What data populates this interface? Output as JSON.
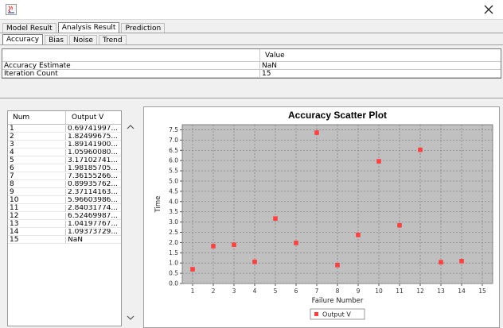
{
  "window": {
    "icon": "java-app-icon",
    "close_icon": "close-icon"
  },
  "main_tabs": [
    {
      "label": "Model Result",
      "active": false
    },
    {
      "label": "Analysis Result",
      "active": true
    },
    {
      "label": "Prediction",
      "active": false
    }
  ],
  "sub_tabs": [
    {
      "label": "Accuracy",
      "active": true
    },
    {
      "label": "Bias",
      "active": false
    },
    {
      "label": "Noise",
      "active": false
    },
    {
      "label": "Trend",
      "active": false
    }
  ],
  "summary_table": {
    "headers": [
      "",
      "Value"
    ],
    "rows": [
      [
        "Accuracy Estimate",
        "NaN"
      ],
      [
        "Iteration Count",
        "15"
      ]
    ]
  },
  "data_table": {
    "headers": [
      "Num",
      "Output V"
    ],
    "rows": [
      [
        "1",
        "0.69741997..."
      ],
      [
        "2",
        "1.82499675..."
      ],
      [
        "3",
        "1.89141900..."
      ],
      [
        "4",
        "1.05960080..."
      ],
      [
        "5",
        "3.17102741..."
      ],
      [
        "6",
        "1.98185705..."
      ],
      [
        "7",
        "7.36155266..."
      ],
      [
        "8",
        "0.89935762..."
      ],
      [
        "9",
        "2.37114163..."
      ],
      [
        "10",
        "5.96603986..."
      ],
      [
        "11",
        "2.84031774..."
      ],
      [
        "12",
        "6.52469987..."
      ],
      [
        "13",
        "1.04197767..."
      ],
      [
        "14",
        "1.09373729..."
      ],
      [
        "15",
        "NaN"
      ]
    ],
    "scroll_up_icon": "chevron-up-icon",
    "scroll_down_icon": "chevron-down-icon"
  },
  "chart_data": {
    "type": "scatter",
    "title": "Accuracy Scatter Plot",
    "xlabel": "Failure Number",
    "ylabel": "Time",
    "xlim": [
      0.5,
      15.5
    ],
    "ylim": [
      0,
      7.75
    ],
    "xticks": [
      "1",
      "2",
      "3",
      "4",
      "5",
      "6",
      "7",
      "8",
      "9",
      "10",
      "11",
      "12",
      "13",
      "14",
      "15"
    ],
    "yticks": [
      "0.0",
      "0.5",
      "1.0",
      "1.5",
      "2.0",
      "2.5",
      "3.0",
      "3.5",
      "4.0",
      "4.5",
      "5.0",
      "5.5",
      "6.0",
      "6.5",
      "7.0",
      "7.5"
    ],
    "grid": true,
    "legend_position": "bottom",
    "plot_background": "#c0c0c0",
    "series": [
      {
        "name": "Output V",
        "color": "#ff4040",
        "x": [
          1,
          2,
          3,
          4,
          5,
          6,
          7,
          8,
          9,
          10,
          11,
          12,
          13,
          14
        ],
        "y": [
          0.697,
          1.825,
          1.891,
          1.06,
          3.171,
          1.982,
          7.362,
          0.899,
          2.371,
          5.966,
          2.84,
          6.525,
          1.042,
          1.094
        ]
      }
    ]
  }
}
